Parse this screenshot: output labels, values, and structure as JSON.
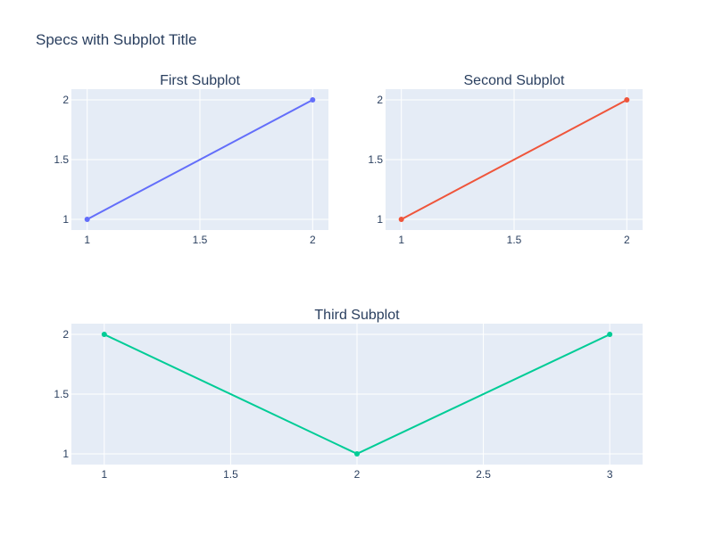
{
  "figure": {
    "title": "Specs with Subplot Title"
  },
  "colors": {
    "plot_background": "#e5ecf6",
    "grid": "#ffffff",
    "text": "#2a3f5f"
  },
  "chart_data": [
    {
      "type": "line",
      "title": "First Subplot",
      "xlabel": "",
      "ylabel": "",
      "x": [
        1,
        2
      ],
      "series": [
        {
          "values": [
            1,
            2
          ],
          "color": "#636efa",
          "markers": true
        }
      ],
      "xlim": [
        0.93,
        2.07
      ],
      "ylim": [
        0.91,
        2.09
      ],
      "xticks": [
        1,
        1.5,
        2
      ],
      "yticks": [
        1,
        1.5,
        2
      ],
      "grid": true
    },
    {
      "type": "line",
      "title": "Second Subplot",
      "xlabel": "",
      "ylabel": "",
      "x": [
        1,
        2
      ],
      "series": [
        {
          "values": [
            1,
            2
          ],
          "color": "#ef553b",
          "markers": true
        }
      ],
      "xlim": [
        0.93,
        2.07
      ],
      "ylim": [
        0.91,
        2.09
      ],
      "xticks": [
        1,
        1.5,
        2
      ],
      "yticks": [
        1,
        1.5,
        2
      ],
      "grid": true
    },
    {
      "type": "line",
      "title": "Third Subplot",
      "xlabel": "",
      "ylabel": "",
      "x": [
        1,
        2,
        3
      ],
      "series": [
        {
          "values": [
            2,
            1,
            2
          ],
          "color": "#00cc96",
          "markers": true
        }
      ],
      "xlim": [
        0.87,
        3.13
      ],
      "ylim": [
        0.91,
        2.09
      ],
      "xticks": [
        1,
        1.5,
        2,
        2.5,
        3
      ],
      "yticks": [
        1,
        1.5,
        2
      ],
      "grid": true
    }
  ]
}
